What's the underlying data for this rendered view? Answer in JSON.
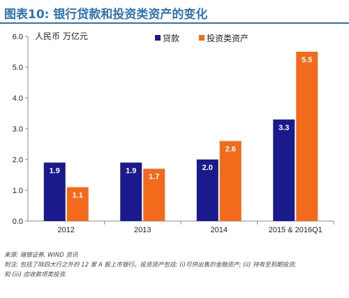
{
  "page_title": "图表10: 银行贷款和投资类资产的变化",
  "chart_data": {
    "type": "bar",
    "ylabel": "人民币 万亿元",
    "ylim": [
      0,
      6
    ],
    "yticks": [
      "0.0",
      "1.0",
      "2.0",
      "3.0",
      "4.0",
      "5.0",
      "6.0"
    ],
    "categories": [
      "2012",
      "2013",
      "2014",
      "2015 & 2016Q1"
    ],
    "series": [
      {
        "name": "贷款",
        "color": "#1a1a8c",
        "values": [
          1.9,
          1.9,
          2.0,
          3.3
        ],
        "labels": [
          "1.9",
          "1.9",
          "2.0",
          "3.3"
        ]
      },
      {
        "name": "投资类资产",
        "color": "#f26b1d",
        "values": [
          1.1,
          1.7,
          2.6,
          5.5
        ],
        "labels": [
          "1.1",
          "1.7",
          "2.6",
          "5.5"
        ]
      }
    ],
    "legend_position": "top"
  },
  "footer": {
    "source": "来源: 瑞银证券, WIND 资讯",
    "note_line1": "附注: 包括了除四大行之外的 12 家 A 股上市银行。投资资产包括: (i)可供出售的金融资产; (ii) 持有至到期投资;",
    "note_line2": "和 (iii) 应收款项类投资."
  }
}
